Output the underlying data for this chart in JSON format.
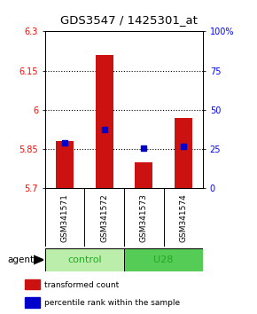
{
  "title": "GDS3547 / 1425301_at",
  "samples": [
    "GSM341571",
    "GSM341572",
    "GSM341573",
    "GSM341574"
  ],
  "bar_bottoms": [
    5.7,
    5.7,
    5.7,
    5.7
  ],
  "bar_tops": [
    5.88,
    6.21,
    5.8,
    5.97
  ],
  "percentile_values": [
    5.875,
    5.925,
    5.855,
    5.862
  ],
  "ylim": [
    5.7,
    6.3
  ],
  "yticks_left": [
    5.7,
    5.85,
    6.0,
    6.15,
    6.3
  ],
  "yticks_right_vals": [
    0,
    25,
    50,
    75,
    100
  ],
  "yticks_right_labels": [
    "0",
    "25",
    "50",
    "75",
    "100%"
  ],
  "hlines": [
    5.85,
    6.0,
    6.15
  ],
  "bar_color": "#cc1111",
  "percentile_color": "#0000cc",
  "control_color": "#bbeeaa",
  "u28_color": "#55cc55",
  "bar_width": 0.45,
  "legend_items": [
    {
      "label": "transformed count",
      "color": "#cc1111"
    },
    {
      "label": "percentile rank within the sample",
      "color": "#0000cc"
    }
  ],
  "gray_box_color": "#cccccc",
  "agent_label": "agent"
}
